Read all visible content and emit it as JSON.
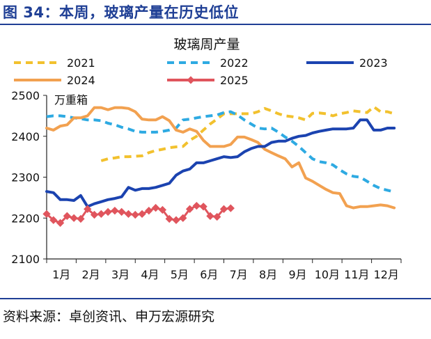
{
  "figure_title": "图 34：本周，玻璃产量在历史低位",
  "source": "资料来源：卓创资讯、申万宏源研究",
  "colors": {
    "header_blue": "#1f3f95",
    "s2021": "#f2c12e",
    "s2022": "#2eaae2",
    "s2023": "#1b43b0",
    "s2024": "#f2a150",
    "s2025": "#e0555d"
  },
  "chart_data": {
    "type": "line",
    "title": "玻璃周产量",
    "unit_label": "万重箱",
    "xlabel": "",
    "ylabel": "",
    "ylim": [
      2100,
      2500
    ],
    "yticks": [
      2100,
      2200,
      2300,
      2400,
      2500
    ],
    "x_range": [
      0,
      52
    ],
    "xtick_labels": [
      "1月",
      "2月",
      "3月",
      "4月",
      "5月",
      "6月",
      "7月",
      "8月",
      "9月",
      "10月",
      "11月",
      "12月"
    ],
    "xtick_positions": [
      0,
      4.33,
      8.67,
      13,
      17.33,
      21.67,
      26,
      30.33,
      34.67,
      39,
      43.33,
      47.67
    ],
    "grid": false,
    "legend": "top",
    "series": [
      {
        "name": "2021",
        "style": "dashed",
        "color": "#f2c12e",
        "x": [
          8,
          9,
          10,
          11,
          12,
          13,
          14,
          15,
          16,
          17,
          18,
          19,
          20,
          21,
          22,
          23,
          24,
          25,
          26,
          27,
          28,
          29,
          30,
          31,
          32,
          33,
          34,
          35,
          36,
          37,
          38,
          39,
          40,
          41,
          42,
          43,
          44,
          45,
          46,
          47,
          48,
          49,
          50,
          51
        ],
        "values": [
          2340,
          2345,
          2347,
          2350,
          2350,
          2351,
          2352,
          2360,
          2365,
          2368,
          2372,
          2374,
          2375,
          2390,
          2400,
          2415,
          2430,
          2442,
          2455,
          2455,
          2455,
          2455,
          2455,
          2460,
          2468,
          2462,
          2455,
          2450,
          2448,
          2445,
          2440,
          2456,
          2457,
          2455,
          2450,
          2455,
          2458,
          2462,
          2460,
          2458,
          2472,
          2460,
          2460,
          2455
        ]
      },
      {
        "name": "2022",
        "style": "dashed",
        "color": "#2eaae2",
        "x": [
          0,
          1,
          2,
          3,
          4,
          5,
          6,
          7,
          8,
          9,
          10,
          11,
          12,
          13,
          14,
          15,
          16,
          17,
          18,
          19,
          20,
          21,
          22,
          23,
          24,
          25,
          26,
          27,
          28,
          29,
          30,
          31,
          32,
          33,
          34,
          35,
          36,
          37,
          38,
          39,
          40,
          41,
          42,
          43,
          44,
          45,
          46,
          47,
          48,
          49,
          50,
          51
        ],
        "values": [
          2448,
          2450,
          2450,
          2448,
          2445,
          2443,
          2440,
          2440,
          2438,
          2432,
          2428,
          2422,
          2418,
          2412,
          2410,
          2410,
          2410,
          2412,
          2415,
          2420,
          2440,
          2442,
          2445,
          2448,
          2450,
          2452,
          2458,
          2460,
          2452,
          2440,
          2430,
          2420,
          2418,
          2420,
          2410,
          2398,
          2388,
          2375,
          2360,
          2345,
          2338,
          2335,
          2330,
          2318,
          2308,
          2302,
          2300,
          2290,
          2280,
          2272,
          2268,
          2264
        ]
      },
      {
        "name": "2023",
        "style": "solid",
        "color": "#1b43b0",
        "x": [
          0,
          1,
          2,
          3,
          4,
          5,
          6,
          7,
          8,
          9,
          10,
          11,
          12,
          13,
          14,
          15,
          16,
          17,
          18,
          19,
          20,
          21,
          22,
          23,
          24,
          25,
          26,
          27,
          28,
          29,
          30,
          31,
          32,
          33,
          34,
          35,
          36,
          37,
          38,
          39,
          40,
          41,
          42,
          43,
          44,
          45,
          46,
          47,
          48,
          49,
          50,
          51
        ],
        "values": [
          2265,
          2262,
          2245,
          2245,
          2243,
          2255,
          2228,
          2235,
          2240,
          2245,
          2248,
          2252,
          2275,
          2268,
          2272,
          2272,
          2275,
          2280,
          2285,
          2305,
          2315,
          2320,
          2335,
          2335,
          2340,
          2345,
          2350,
          2348,
          2350,
          2362,
          2370,
          2375,
          2375,
          2385,
          2388,
          2388,
          2395,
          2400,
          2402,
          2408,
          2412,
          2415,
          2418,
          2418,
          2418,
          2420,
          2440,
          2440,
          2415,
          2415,
          2420,
          2420
        ]
      },
      {
        "name": "2024",
        "style": "solid",
        "color": "#f2a150",
        "x": [
          0,
          1,
          2,
          3,
          4,
          5,
          6,
          7,
          8,
          9,
          10,
          11,
          12,
          13,
          14,
          15,
          16,
          17,
          18,
          19,
          20,
          21,
          22,
          23,
          24,
          25,
          26,
          27,
          28,
          29,
          30,
          31,
          32,
          33,
          34,
          35,
          36,
          37,
          38,
          39,
          40,
          41,
          42,
          43,
          44,
          45,
          46,
          47,
          48,
          49,
          50,
          51
        ],
        "values": [
          2420,
          2415,
          2425,
          2428,
          2445,
          2445,
          2450,
          2470,
          2470,
          2465,
          2470,
          2470,
          2468,
          2460,
          2442,
          2440,
          2440,
          2448,
          2438,
          2415,
          2410,
          2418,
          2412,
          2390,
          2375,
          2375,
          2375,
          2380,
          2398,
          2398,
          2392,
          2385,
          2368,
          2360,
          2352,
          2345,
          2325,
          2335,
          2298,
          2290,
          2280,
          2270,
          2262,
          2260,
          2230,
          2225,
          2228,
          2228,
          2230,
          2232,
          2230,
          2225
        ]
      },
      {
        "name": "2025",
        "style": "solid-marker",
        "color": "#e0555d",
        "x": [
          0,
          1,
          2,
          3,
          4,
          5,
          6,
          7,
          8,
          9,
          10,
          11,
          12,
          13,
          14,
          15,
          16,
          17,
          18,
          19,
          20,
          21,
          22,
          23,
          24,
          25,
          26,
          27
        ],
        "values": [
          2210,
          2195,
          2188,
          2205,
          2200,
          2198,
          2222,
          2208,
          2210,
          2215,
          2218,
          2215,
          2210,
          2208,
          2210,
          2218,
          2225,
          2220,
          2198,
          2195,
          2200,
          2222,
          2230,
          2228,
          2205,
          2203,
          2222,
          2224
        ]
      }
    ]
  }
}
